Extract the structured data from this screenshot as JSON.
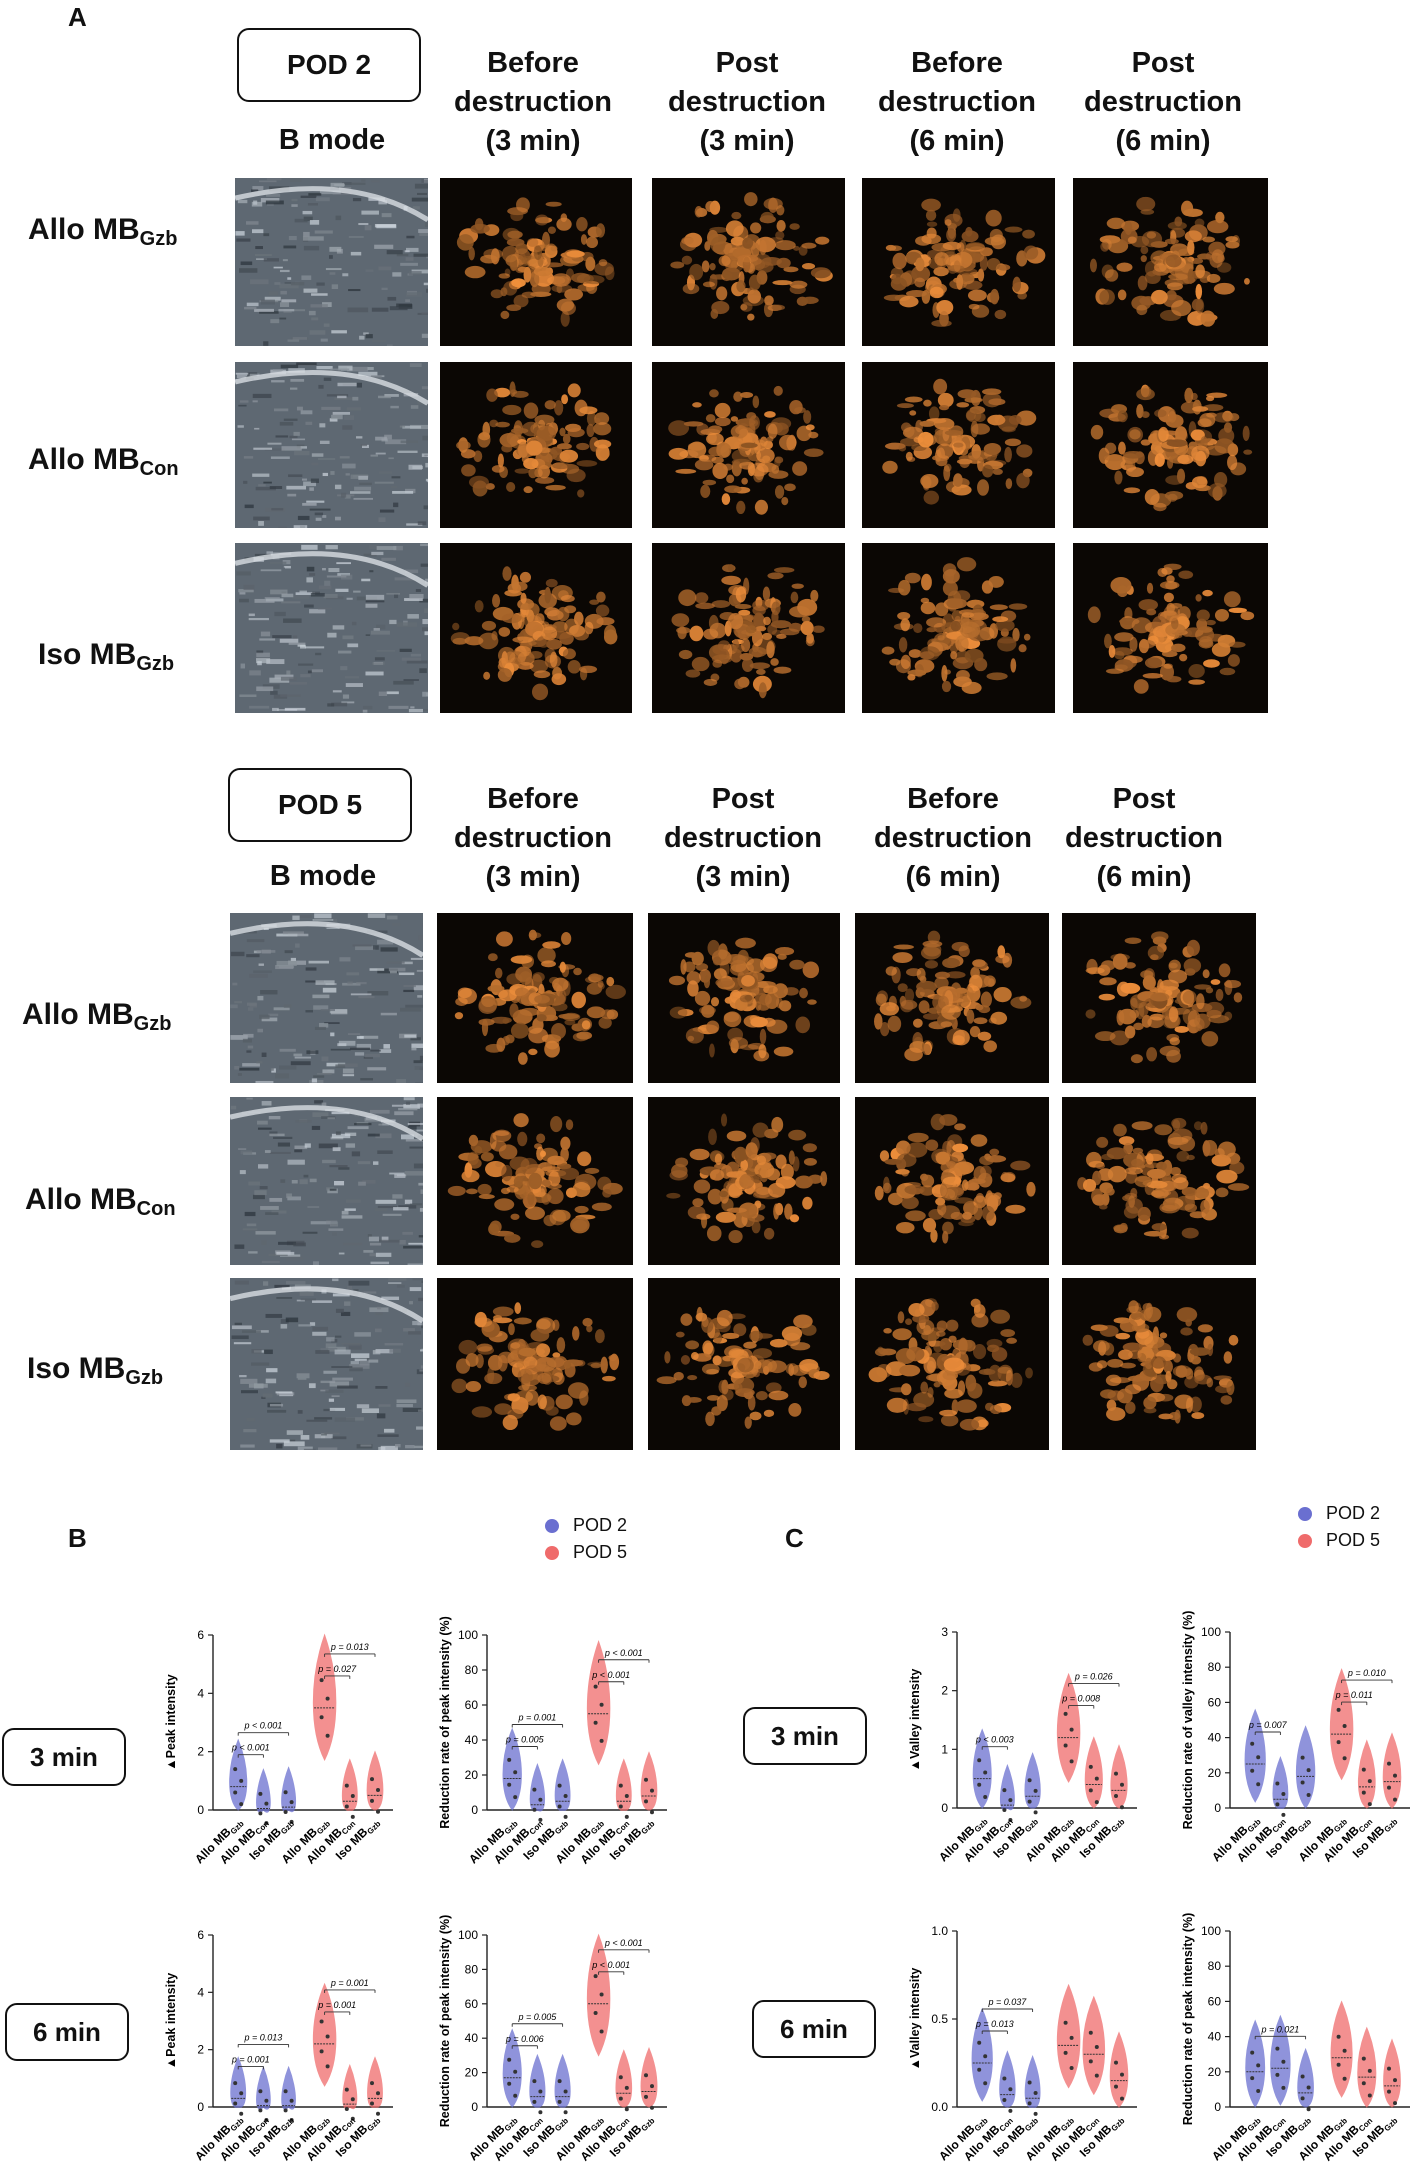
{
  "panels": {
    "a": "A",
    "b": "B",
    "c": "C"
  },
  "pod2": {
    "label": "POD 2",
    "bmode": "B mode",
    "headers": [
      "Before\ndestruction\n(3 min)",
      "Post\ndestruction\n(3 min)",
      "Before\ndestruction\n(6 min)",
      "Post\ndestruction\n(6 min)"
    ]
  },
  "pod5": {
    "label": "POD 5",
    "bmode": "B mode",
    "headers": [
      "Before\ndestruction\n(3 min)",
      "Post\ndestruction\n(3 min)",
      "Before\ndestruction\n(6 min)",
      "Post\ndestruction\n(6 min)"
    ]
  },
  "rows": [
    {
      "main": "Allo MB",
      "sub": "Gzb"
    },
    {
      "main": "Allo MB",
      "sub": "Con"
    },
    {
      "main": "Iso MB",
      "sub": "Gzb"
    }
  ],
  "time_labels": {
    "b3": "3 min",
    "b6": "6 min",
    "c3": "3 min",
    "c6": "6 min"
  },
  "legend": {
    "pod2": "POD 2",
    "pod5": "POD 5",
    "pod2_color": "#6a6fd0",
    "pod5_color": "#ef6b6b"
  },
  "chart_data": [
    {
      "id": "b3-peak",
      "type": "violin",
      "ylabel": "▲Peak intensity",
      "ylim": [
        0,
        6
      ],
      "yticks": [
        "0",
        "2",
        "4",
        "6"
      ],
      "categories": [
        "Allo MBGzb",
        "Allo MBCon",
        "Iso MBGzb",
        "Allo MBGzb",
        "Allo MBCon",
        "Iso MBGzb"
      ],
      "series": [
        {
          "name": "POD 2",
          "values": [
            0.8,
            0.05,
            0.1
          ]
        },
        {
          "name": "POD 5",
          "values": [
            3.5,
            0.3,
            0.5
          ]
        }
      ],
      "annotations": [
        {
          "from": 0,
          "to": 1,
          "text": "p < 0.001"
        },
        {
          "from": 0,
          "to": 2,
          "text": "p < 0.001"
        },
        {
          "from": 3,
          "to": 4,
          "text": "p = 0.027"
        },
        {
          "from": 3,
          "to": 5,
          "text": "p = 0.013"
        }
      ]
    },
    {
      "id": "b3-red",
      "type": "violin",
      "ylabel": "Reduction rate of peak intensity (%)",
      "ylim": [
        0,
        100
      ],
      "yticks": [
        "0",
        "20",
        "40",
        "60",
        "80",
        "100"
      ],
      "categories": [
        "Allo MBGzb",
        "Allo MBCon",
        "Iso MBGzb",
        "Allo MBGzb",
        "Allo MBCon",
        "Iso MBGzb"
      ],
      "series": [
        {
          "name": "POD 2",
          "values": [
            18,
            3,
            5
          ]
        },
        {
          "name": "POD 5",
          "values": [
            55,
            5,
            8
          ]
        }
      ],
      "annotations": [
        {
          "from": 0,
          "to": 1,
          "text": "p = 0.005"
        },
        {
          "from": 0,
          "to": 2,
          "text": "p = 0.001"
        },
        {
          "from": 3,
          "to": 4,
          "text": "p < 0.001"
        },
        {
          "from": 3,
          "to": 5,
          "text": "p < 0.001"
        }
      ]
    },
    {
      "id": "b6-peak",
      "type": "violin",
      "ylabel": "▲Peak intensity",
      "ylim": [
        0,
        6
      ],
      "yticks": [
        "0",
        "2",
        "4",
        "6"
      ],
      "categories": [
        "Allo MBGzb",
        "Allo MBCon",
        "Iso MBGzb",
        "Allo MBGzb",
        "Allo MBCon",
        "Iso MBGzb"
      ],
      "series": [
        {
          "name": "POD 2",
          "values": [
            0.3,
            0.05,
            0.05
          ]
        },
        {
          "name": "POD 5",
          "values": [
            2.2,
            0.1,
            0.3
          ]
        }
      ],
      "annotations": [
        {
          "from": 0,
          "to": 1,
          "text": "p = 0.001"
        },
        {
          "from": 0,
          "to": 2,
          "text": "p = 0.013"
        },
        {
          "from": 3,
          "to": 4,
          "text": "p = 0.001"
        },
        {
          "from": 3,
          "to": 5,
          "text": "p = 0.001"
        }
      ]
    },
    {
      "id": "b6-red",
      "type": "violin",
      "ylabel": "Reduction rate of peak intensity (%)",
      "ylim": [
        0,
        100
      ],
      "yticks": [
        "0",
        "20",
        "40",
        "60",
        "80",
        "100"
      ],
      "categories": [
        "Allo MBGzb",
        "Allo MBCon",
        "Iso MBGzb",
        "Allo MBGzb",
        "Allo MBCon",
        "Iso MBGzb"
      ],
      "series": [
        {
          "name": "POD 2",
          "values": [
            17,
            6,
            6
          ]
        },
        {
          "name": "POD 5",
          "values": [
            60,
            8,
            9
          ]
        }
      ],
      "annotations": [
        {
          "from": 0,
          "to": 1,
          "text": "p = 0.006"
        },
        {
          "from": 0,
          "to": 2,
          "text": "p = 0.005"
        },
        {
          "from": 3,
          "to": 4,
          "text": "p < 0.001"
        },
        {
          "from": 3,
          "to": 5,
          "text": "p < 0.001"
        }
      ]
    },
    {
      "id": "c3-valley",
      "type": "violin",
      "ylabel": "▲Valley intensity",
      "ylim": [
        0,
        3
      ],
      "yticks": [
        "0",
        "1",
        "2",
        "3"
      ],
      "categories": [
        "Allo MBGzb",
        "Allo MBCon",
        "Iso MBGzb",
        "Allo MBGzb",
        "Allo MBCon",
        "Iso MBGzb"
      ],
      "series": [
        {
          "name": "POD 2",
          "values": [
            0.5,
            0.05,
            0.2
          ]
        },
        {
          "name": "POD 5",
          "values": [
            1.2,
            0.4,
            0.3
          ]
        }
      ],
      "annotations": [
        {
          "from": 0,
          "to": 1,
          "text": "p < 0.003"
        },
        {
          "from": 3,
          "to": 4,
          "text": "p = 0.008"
        },
        {
          "from": 3,
          "to": 5,
          "text": "p = 0.026"
        }
      ]
    },
    {
      "id": "c3-red",
      "type": "violin",
      "ylabel": "Reduction rate of valley intensity (%)",
      "ylim": [
        0,
        100
      ],
      "yticks": [
        "0",
        "20",
        "40",
        "60",
        "80",
        "100"
      ],
      "categories": [
        "Allo MBGzb",
        "Allo MBCon",
        "Iso MBGzb",
        "Allo MBGzb",
        "Allo MBCon",
        "Iso MBGzb"
      ],
      "series": [
        {
          "name": "POD 2",
          "values": [
            25,
            5,
            18
          ]
        },
        {
          "name": "POD 5",
          "values": [
            42,
            12,
            15
          ]
        }
      ],
      "annotations": [
        {
          "from": 0,
          "to": 1,
          "text": "p = 0.007"
        },
        {
          "from": 3,
          "to": 4,
          "text": "p = 0.011"
        },
        {
          "from": 3,
          "to": 5,
          "text": "p = 0.010"
        }
      ]
    },
    {
      "id": "c6-valley",
      "type": "violin",
      "ylabel": "▲Valley intensity",
      "ylim": [
        0,
        1
      ],
      "yticks": [
        "0.0",
        "0.5",
        "1.0"
      ],
      "categories": [
        "Allo MBGzb",
        "Allo MBCon",
        "Iso MBGzb",
        "Allo MBGzb",
        "Allo MBCon",
        "Iso MBGzb"
      ],
      "series": [
        {
          "name": "POD 2",
          "values": [
            0.25,
            0.07,
            0.05
          ]
        },
        {
          "name": "POD 5",
          "values": [
            0.35,
            0.3,
            0.15
          ]
        }
      ],
      "annotations": [
        {
          "from": 0,
          "to": 1,
          "text": "p = 0.013"
        },
        {
          "from": 0,
          "to": 2,
          "text": "p = 0.037"
        }
      ]
    },
    {
      "id": "c6-red",
      "type": "violin",
      "ylabel": "Reduction rate of peak intensity (%)",
      "ylim": [
        0,
        100
      ],
      "yticks": [
        "0",
        "20",
        "40",
        "60",
        "80",
        "100"
      ],
      "categories": [
        "Allo MBGzb",
        "Allo MBCon",
        "Iso MBGzb",
        "Allo MBGzb",
        "Allo MBCon",
        "Iso MBGzb"
      ],
      "series": [
        {
          "name": "POD 2",
          "values": [
            20,
            22,
            8
          ]
        },
        {
          "name": "POD 5",
          "values": [
            28,
            17,
            12
          ]
        }
      ],
      "annotations": [
        {
          "from": 0,
          "to": 2,
          "text": "p = 0.021"
        }
      ]
    }
  ]
}
